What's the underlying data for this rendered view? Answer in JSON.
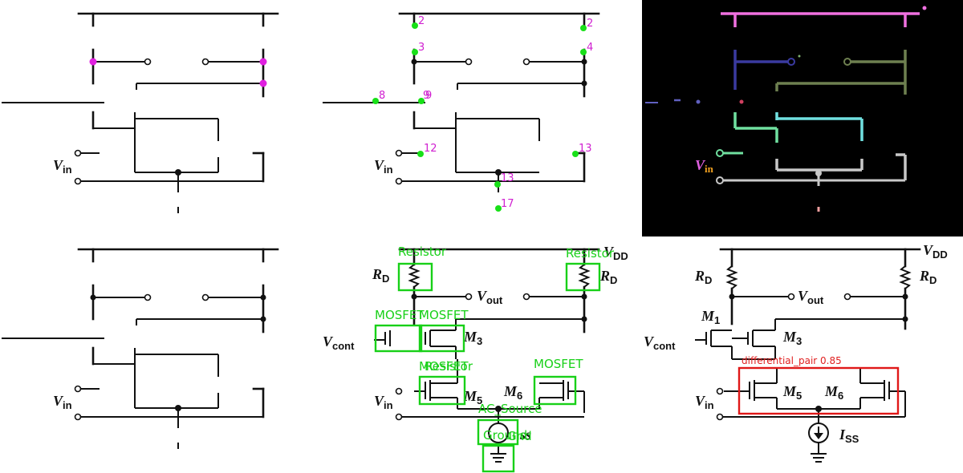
{
  "panels": {
    "p2": {
      "node_labels": [
        "2",
        "2",
        "3",
        "4",
        "8",
        "9",
        "9",
        "12",
        "13",
        "13",
        "17"
      ]
    },
    "p5": {
      "components": [
        "Resistor",
        "Resistor",
        "MOSFET",
        "MOSFET",
        "MOSFET",
        "Resistor",
        "MOSFET",
        "AC_Source",
        "Ground",
        "Gnd"
      ]
    },
    "p6": {
      "detection_label": "differential_pair 0.85"
    }
  },
  "circuit_labels": {
    "vdd": "V",
    "vdd_sub": "DD",
    "rd": "R",
    "rd_sub": "D",
    "vout": "V",
    "vout_sub": "out",
    "vcont": "V",
    "vcont_sub": "cont",
    "vin": "V",
    "vin_sub": "in",
    "m1": "M",
    "m1_sub": "1",
    "m3": "M",
    "m3_sub": "3",
    "m5": "M",
    "m5_sub": "5",
    "m6": "M",
    "m6_sub": "6",
    "iss": "I",
    "iss_sub": "SS",
    "iss_partial": "ss"
  },
  "colors": {
    "green": "#18e018",
    "magenta": "#e020e0",
    "red": "#e01818",
    "black_panel": "#000000"
  }
}
